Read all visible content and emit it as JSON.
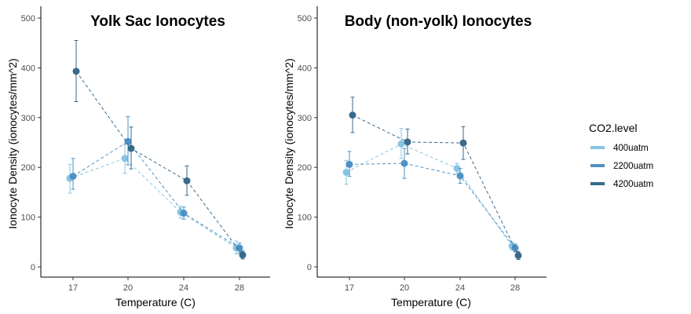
{
  "chart_data": [
    {
      "type": "line",
      "title": "Yolk Sac Ionocytes",
      "xlabel": "Temperature (C)",
      "ylabel": "Ionocyte Density (ionocytes/mm^2)",
      "categories": [
        "17",
        "20",
        "24",
        "28"
      ],
      "ylim": [
        0,
        500
      ],
      "yticks": [
        0,
        100,
        200,
        300,
        400,
        500
      ],
      "grid": false,
      "error_bars": true,
      "series": [
        {
          "name": "400uatm",
          "color": "#87c5e4",
          "values": [
            178,
            218,
            110,
            38
          ],
          "err_low": [
            148,
            188,
            98,
            26
          ],
          "err_high": [
            206,
            246,
            122,
            52
          ]
        },
        {
          "name": "2200uatm",
          "color": "#4f91c4",
          "values": [
            182,
            252,
            108,
            38
          ],
          "err_low": [
            156,
            205,
            96,
            28
          ],
          "err_high": [
            218,
            302,
            120,
            48
          ]
        },
        {
          "name": "4200uatm",
          "color": "#3a6a8c",
          "values": [
            393,
            238,
            173,
            24
          ],
          "err_low": [
            332,
            197,
            144,
            16
          ],
          "err_high": [
            455,
            281,
            203,
            32
          ]
        }
      ]
    },
    {
      "type": "line",
      "title": "Body (non-yolk) Ionocytes",
      "xlabel": "Temperature (C)",
      "ylabel": "Ionocyte Density (ionocytes/mm^2)",
      "categories": [
        "17",
        "20",
        "24",
        "28"
      ],
      "ylim": [
        0,
        500
      ],
      "yticks": [
        0,
        100,
        200,
        300,
        400,
        500
      ],
      "grid": false,
      "error_bars": true,
      "series": [
        {
          "name": "400uatm",
          "color": "#87c5e4",
          "values": [
            190,
            247,
            198,
            42
          ],
          "err_low": [
            166,
            218,
            188,
            34
          ],
          "err_high": [
            214,
            278,
            208,
            50
          ]
        },
        {
          "name": "2200uatm",
          "color": "#4f91c4",
          "values": [
            206,
            208,
            183,
            38
          ],
          "err_low": [
            182,
            178,
            168,
            30
          ],
          "err_high": [
            232,
            238,
            198,
            46
          ]
        },
        {
          "name": "4200uatm",
          "color": "#3a6a8c",
          "values": [
            305,
            251,
            249,
            23
          ],
          "err_low": [
            270,
            227,
            216,
            15
          ],
          "err_high": [
            341,
            277,
            282,
            31
          ]
        }
      ]
    }
  ],
  "legend": {
    "title": "CO2.level",
    "position": "right",
    "items": [
      {
        "label": "400uatm",
        "color": "#87c5e4"
      },
      {
        "label": "2200uatm",
        "color": "#4f91c4"
      },
      {
        "label": "4200uatm",
        "color": "#3a6a8c"
      }
    ]
  }
}
